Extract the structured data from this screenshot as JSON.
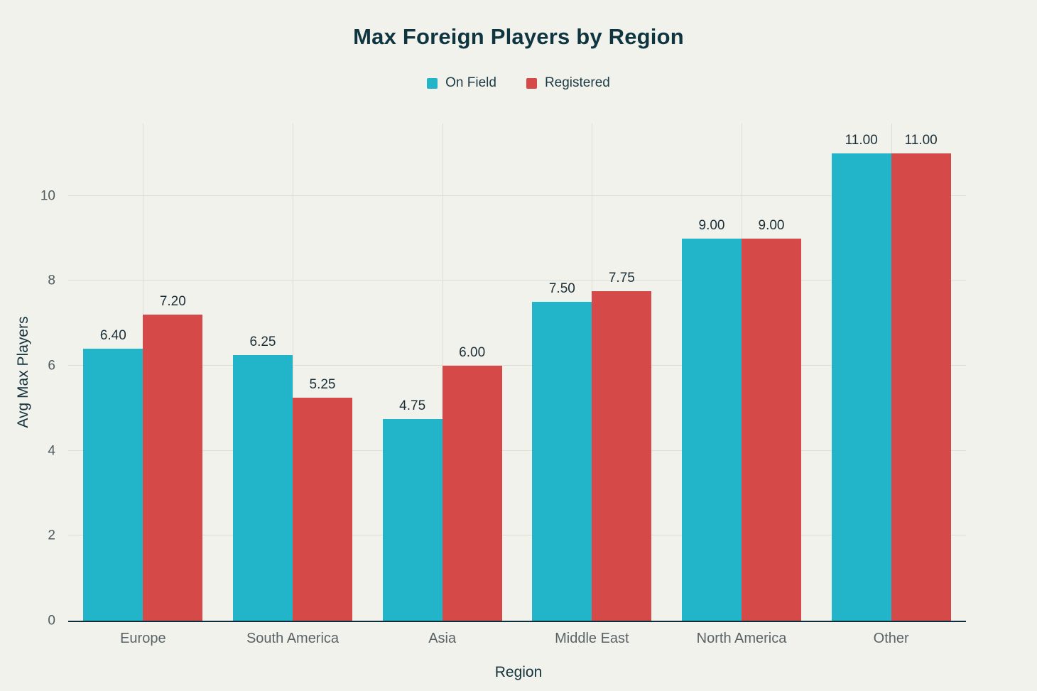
{
  "chart_data": {
    "type": "bar",
    "title": "Max Foreign Players by Region",
    "xlabel": "Region",
    "ylabel": "Avg Max Players",
    "categories": [
      "Europe",
      "South America",
      "Asia",
      "Middle East",
      "North America",
      "Other"
    ],
    "series": [
      {
        "name": "On Field",
        "color": "#22b5c9",
        "values": [
          6.4,
          6.25,
          4.75,
          7.5,
          9.0,
          11.0
        ],
        "labels": [
          "6.40",
          "6.25",
          "4.75",
          "7.50",
          "9.00",
          "11.00"
        ]
      },
      {
        "name": "Registered",
        "color": "#d64949",
        "values": [
          7.2,
          5.25,
          6.0,
          7.75,
          9.0,
          11.0
        ],
        "labels": [
          "7.20",
          "5.25",
          "6.00",
          "7.75",
          "9.00",
          "11.00"
        ]
      }
    ],
    "yticks": [
      0,
      2,
      4,
      6,
      8,
      10
    ],
    "ylim": [
      0,
      11.7
    ],
    "grid": true,
    "legend_position": "top",
    "background": "#f2f2ed",
    "title_color": "#0e3540",
    "axis_line_color": "#0c2d3a"
  }
}
